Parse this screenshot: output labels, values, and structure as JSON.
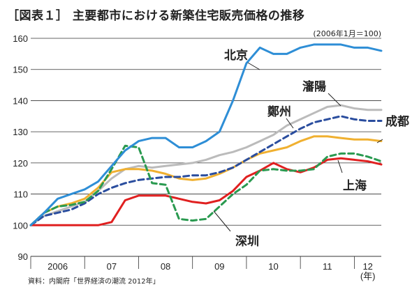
{
  "title": "［図表１］ 主要都市における新築住宅販売価格の推移",
  "subtitle": "(2006年1月＝100)",
  "source": "資料：内閣府「世界経済の潮流 2012年」",
  "chart_data": {
    "type": "line",
    "ylim": [
      90,
      160
    ],
    "yticks": [
      90,
      100,
      110,
      120,
      130,
      140,
      150,
      160
    ],
    "xlim": [
      0,
      78
    ],
    "xlabel": "(年)",
    "xticks": [
      {
        "label": "2006",
        "x": 6
      },
      {
        "label": "07",
        "x": 18
      },
      {
        "label": "08",
        "x": 30
      },
      {
        "label": "09",
        "x": 42
      },
      {
        "label": "10",
        "x": 54
      },
      {
        "label": "11",
        "x": 66
      },
      {
        "label": "12",
        "x": 75
      }
    ],
    "grid": true,
    "series": [
      {
        "name": "北京",
        "color": "#2e8ed6",
        "dash": "solid",
        "x": [
          0,
          3,
          6,
          9,
          12,
          15,
          18,
          21,
          24,
          27,
          30,
          33,
          36,
          39,
          42,
          45,
          48,
          51,
          54,
          57,
          60,
          63,
          66,
          69,
          72,
          75,
          78
        ],
        "y": [
          100,
          104,
          108.5,
          110,
          111.5,
          114,
          119,
          124,
          127,
          128,
          128,
          125,
          125,
          127,
          130,
          140,
          152,
          157,
          155,
          155,
          157,
          158,
          158,
          158,
          157,
          157,
          156
        ]
      },
      {
        "name": "瀋陽",
        "color": "#bbbbbb",
        "dash": "solid",
        "x": [
          0,
          3,
          6,
          9,
          12,
          15,
          18,
          21,
          24,
          27,
          30,
          33,
          36,
          39,
          42,
          45,
          48,
          51,
          54,
          57,
          60,
          63,
          66,
          69,
          72,
          75,
          78
        ],
        "y": [
          100,
          103,
          104.5,
          106,
          107.5,
          111,
          115,
          118,
          119,
          118.5,
          119,
          119.5,
          120,
          121,
          122.5,
          123.5,
          125,
          127,
          129,
          132,
          134,
          136,
          138,
          138.5,
          137.5,
          137,
          137
        ]
      },
      {
        "name": "鄭州",
        "color": "#2a4d9e",
        "dash": "dashed",
        "x": [
          0,
          3,
          6,
          9,
          12,
          15,
          18,
          21,
          24,
          27,
          30,
          33,
          36,
          39,
          42,
          45,
          48,
          51,
          54,
          57,
          60,
          63,
          66,
          69,
          72,
          75,
          78
        ],
        "y": [
          100,
          103,
          104,
          105,
          107,
          110,
          112,
          113.5,
          114.5,
          115,
          115.5,
          115.5,
          116,
          116,
          117,
          118.5,
          121,
          123.5,
          126,
          128.5,
          131,
          133,
          134,
          135,
          134,
          133.5,
          133.5
        ]
      },
      {
        "name": "成都",
        "color": "#f0b030",
        "dash": "solid",
        "x": [
          0,
          3,
          6,
          9,
          12,
          15,
          18,
          21,
          24,
          27,
          30,
          33,
          36,
          39,
          42,
          45,
          48,
          51,
          54,
          57,
          60,
          63,
          66,
          69,
          72,
          75,
          78
        ],
        "y": [
          100,
          104,
          106,
          107,
          108.5,
          112,
          117,
          118,
          118,
          117.5,
          116.5,
          115,
          114.5,
          115,
          116.5,
          118.5,
          121,
          123,
          124,
          125,
          127,
          128.5,
          128.5,
          128,
          127.5,
          127.5,
          127
        ]
      },
      {
        "name": "上海",
        "color": "#e02020",
        "dash": "solid",
        "x": [
          0,
          3,
          6,
          9,
          12,
          15,
          18,
          21,
          24,
          27,
          30,
          33,
          36,
          39,
          42,
          45,
          48,
          51,
          54,
          57,
          60,
          63,
          66,
          69,
          72,
          75,
          78
        ],
        "y": [
          100,
          100,
          100,
          100,
          100,
          100,
          101,
          108,
          109.5,
          109.5,
          109.5,
          108.5,
          107.5,
          107,
          108,
          111,
          115.5,
          117.5,
          120,
          118,
          117,
          118.5,
          121,
          121.5,
          121,
          120.5,
          119.5
        ]
      },
      {
        "name": "深圳",
        "color": "#2a9a50",
        "dash": "dashed",
        "x": [
          0,
          3,
          6,
          9,
          12,
          15,
          18,
          21,
          24,
          27,
          30,
          33,
          36,
          39,
          42,
          45,
          48,
          51,
          54,
          57,
          60,
          63,
          66,
          69,
          72,
          75,
          78
        ],
        "y": [
          100,
          104,
          106,
          106.5,
          107.5,
          111,
          118,
          125.5,
          125,
          113.5,
          113,
          102,
          101.5,
          102,
          106,
          110,
          113,
          117.5,
          118,
          117.5,
          117.5,
          118,
          122,
          123,
          123,
          122,
          120.5
        ]
      }
    ]
  }
}
